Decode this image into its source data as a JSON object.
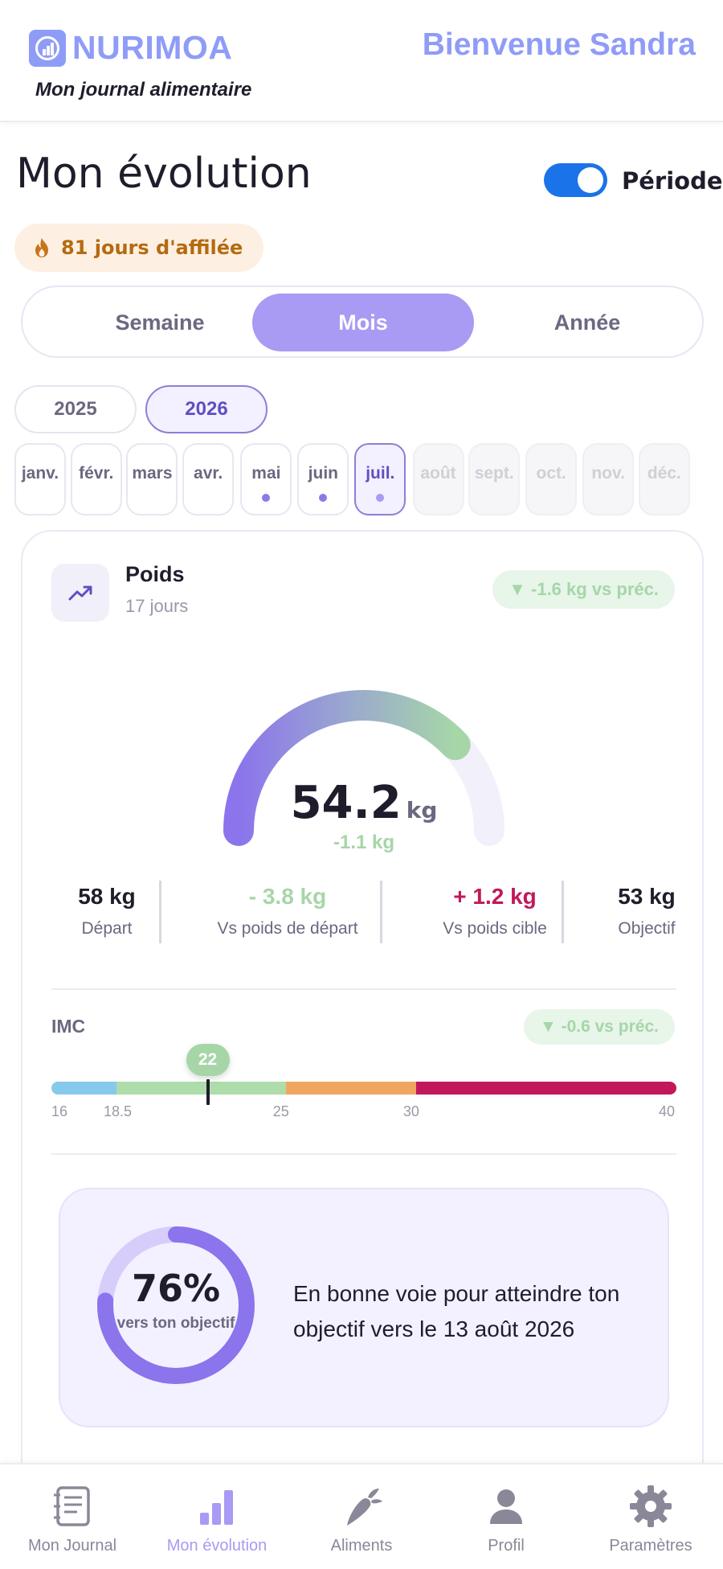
{
  "header": {
    "brand": "NURIMOA",
    "tagline": "Mon journal alimentaire",
    "welcome": "Bienvenue Sandra"
  },
  "page": {
    "title": "Mon évolution",
    "toggle_label": "Période",
    "toggle_on": true,
    "streak": "81 jours d'affilée"
  },
  "period_tabs": {
    "week": "Semaine",
    "month": "Mois",
    "year": "Année",
    "selected": "Mois"
  },
  "years": {
    "y2025": "2025",
    "y2026": "2026",
    "selected": "2026"
  },
  "months": [
    {
      "label": "janv.",
      "state": "normal",
      "dot": false
    },
    {
      "label": "févr.",
      "state": "normal",
      "dot": false
    },
    {
      "label": "mars",
      "state": "normal",
      "dot": false
    },
    {
      "label": "avr.",
      "state": "normal",
      "dot": false
    },
    {
      "label": "mai",
      "state": "normal",
      "dot": true
    },
    {
      "label": "juin",
      "state": "normal",
      "dot": true
    },
    {
      "label": "juil.",
      "state": "active",
      "dot": true
    },
    {
      "label": "août",
      "state": "disabled",
      "dot": false
    },
    {
      "label": "sept.",
      "state": "disabled",
      "dot": false
    },
    {
      "label": "oct.",
      "state": "disabled",
      "dot": false
    },
    {
      "label": "nov.",
      "state": "disabled",
      "dot": false
    },
    {
      "label": "déc.",
      "state": "disabled",
      "dot": false
    }
  ],
  "weight_card": {
    "title": "Poids",
    "subtitle": "17 jours",
    "delta_badge": "▼ -1.6 kg vs préc.",
    "value": "54.2",
    "unit": "kg",
    "delta": "-1.1 kg",
    "gauge_progress": 0.76,
    "stats": {
      "start_value": "58 kg",
      "start_label": "Départ",
      "vs_start_value": "- 3.8 kg",
      "vs_start_label": "Vs poids de départ",
      "vs_target_value": "+ 1.2 kg",
      "vs_target_label": "Vs poids cible",
      "goal_value": "53 kg",
      "goal_label": "Objectif"
    }
  },
  "imc": {
    "label": "IMC",
    "delta_badge": "▼ -0.6 vs préc.",
    "value": 22,
    "value_label": "22",
    "min": 16,
    "max": 40,
    "ticks": [
      "16",
      "18.5",
      "25",
      "30",
      "40"
    ],
    "tick_values": [
      16,
      18.5,
      25,
      30,
      40
    ],
    "colors": [
      "#86c9ec",
      "#aedcab",
      "#f0a660",
      "#c2185b"
    ]
  },
  "goal": {
    "percent_label": "76%",
    "percent": 76,
    "caption": "vers ton objectif",
    "text": "En bonne voie pour atteindre ton objectif vers le 13 août 2026"
  },
  "bottom_nav": {
    "journal": "Mon Journal",
    "evolution": "Mon évolution",
    "foods": "Aliments",
    "profile": "Profil",
    "settings": "Paramètres",
    "active": "evolution"
  },
  "colors": {
    "brand": "#8f9cf7",
    "accent": "#a99af4",
    "toggle": "#1a73e8",
    "positive": "#a6d6a8",
    "negative": "#c2185b"
  }
}
